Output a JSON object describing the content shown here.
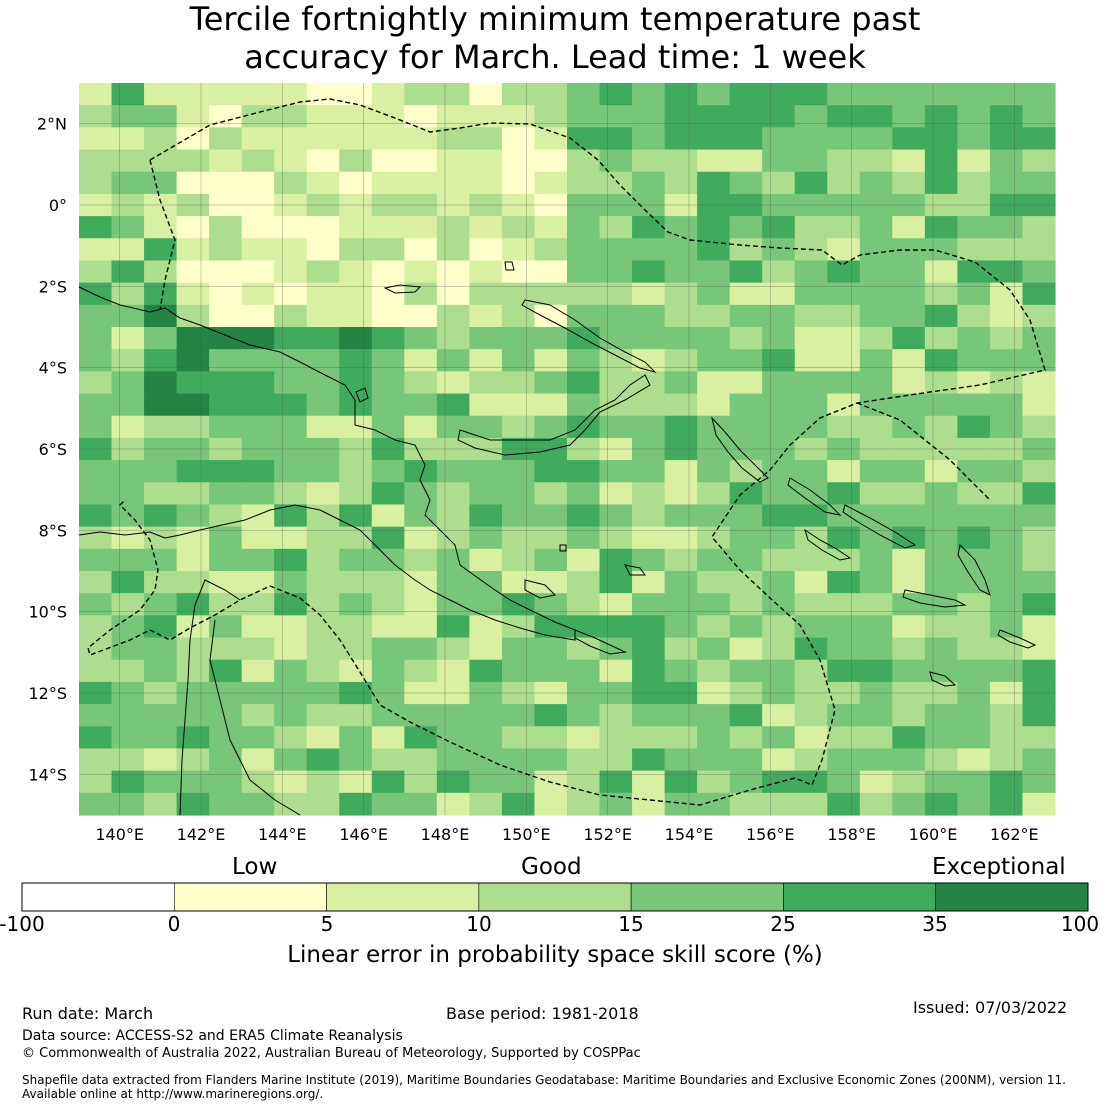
{
  "title_line1": "Tercile fortnightly minimum temperature past",
  "title_line2": "accuracy for March. Lead time: 1 week",
  "map": {
    "lon_range": [
      139,
      163
    ],
    "lat_range": [
      -15,
      3
    ],
    "lon_ticks": [
      "140°E",
      "142°E",
      "144°E",
      "146°E",
      "148°E",
      "150°E",
      "152°E",
      "154°E",
      "156°E",
      "158°E",
      "160°E",
      "162°E"
    ],
    "lat_ticks": [
      "2°N",
      "0°",
      "2°S",
      "4°S",
      "6°S",
      "8°S",
      "10°S",
      "12°S",
      "14°S"
    ],
    "gridlines": true
  },
  "colorbar": {
    "categories": [
      "Low",
      "Good",
      "Exceptional"
    ],
    "ticks": [
      "-100",
      "0",
      "5",
      "10",
      "15",
      "25",
      "35",
      "100"
    ],
    "colors": [
      "#ffffff",
      "#ffffcc",
      "#d9f0a3",
      "#addd8e",
      "#78c679",
      "#41ab5d",
      "#238443"
    ],
    "label": "Linear error in probability space skill score (%)"
  },
  "footer": {
    "run_date": "Run date: March",
    "base_period": "Base period: 1981-2018",
    "issued": "Issued: 07/03/2022",
    "data_source": "Data source: ACCESS-S2 and ERA5 Climate Reanalysis",
    "copyright": "© Commonwealth of Australia 2022, Australian Bureau of Meteorology, Supported by COSPPac",
    "shapefile_line1": "Shapefile data extracted from Flanders Marine Institute (2019), Maritime Boundaries Geodatabase: Maritime Boundaries and Exclusive Economic Zones (200NM), version 11.",
    "shapefile_line2": "Available online at http://www.marineregions.org/."
  }
}
